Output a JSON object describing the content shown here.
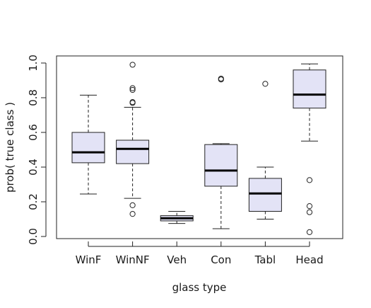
{
  "chart_data": {
    "type": "boxplot",
    "title": "",
    "xlabel": "glass type",
    "ylabel": "prob( true class )",
    "ylim": [
      0.0,
      1.0
    ],
    "y_ticks": [
      0.0,
      0.2,
      0.4,
      0.6,
      0.8,
      1.0
    ],
    "y_tick_labels": [
      "0.0",
      "0.2",
      "0.4",
      "0.6",
      "0.8",
      "1.0"
    ],
    "grid": false,
    "legend": "none",
    "box_fill": "#e3e3f6",
    "categories": [
      "WinF",
      "WinNF",
      "Veh",
      "Con",
      "Tabl",
      "Head"
    ],
    "boxes": [
      {
        "category": "WinF",
        "whisker_low": 0.245,
        "q1": 0.425,
        "median": 0.485,
        "q3": 0.6,
        "whisker_high": 0.815,
        "outliers": []
      },
      {
        "category": "WinNF",
        "whisker_low": 0.22,
        "q1": 0.42,
        "median": 0.505,
        "q3": 0.555,
        "whisker_high": 0.745,
        "outliers": [
          0.99,
          0.855,
          0.845,
          0.775,
          0.77,
          0.18,
          0.13
        ]
      },
      {
        "category": "Veh",
        "whisker_low": 0.075,
        "q1": 0.09,
        "median": 0.105,
        "q3": 0.12,
        "whisker_high": 0.145,
        "outliers": []
      },
      {
        "category": "Con",
        "whisker_low": 0.045,
        "q1": 0.29,
        "median": 0.38,
        "q3": 0.53,
        "whisker_high": 0.535,
        "outliers": [
          0.91,
          0.905
        ]
      },
      {
        "category": "Tabl",
        "whisker_low": 0.1,
        "q1": 0.145,
        "median": 0.248,
        "q3": 0.335,
        "whisker_high": 0.4,
        "outliers": [
          0.88
        ]
      },
      {
        "category": "Head",
        "whisker_low": 0.55,
        "q1": 0.74,
        "median": 0.818,
        "q3": 0.96,
        "whisker_high": 0.995,
        "outliers": [
          0.325,
          0.175,
          0.14,
          0.025
        ]
      }
    ]
  }
}
